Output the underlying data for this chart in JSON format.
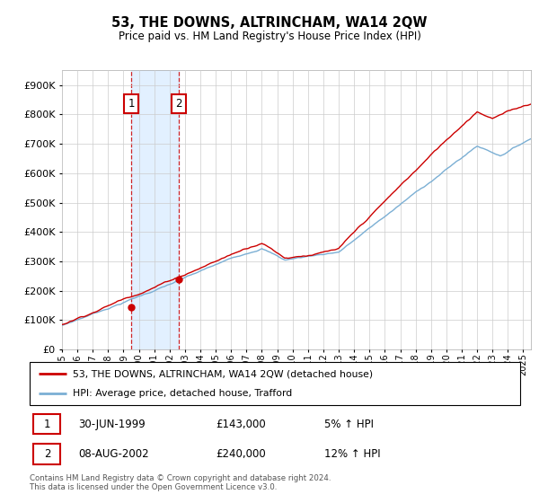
{
  "title": "53, THE DOWNS, ALTRINCHAM, WA14 2QW",
  "subtitle": "Price paid vs. HM Land Registry's House Price Index (HPI)",
  "legend_line1": "53, THE DOWNS, ALTRINCHAM, WA14 2QW (detached house)",
  "legend_line2": "HPI: Average price, detached house, Trafford",
  "transaction1_date": "30-JUN-1999",
  "transaction1_price": "£143,000",
  "transaction1_pct": "5% ↑ HPI",
  "transaction1_year": 1999.5,
  "transaction1_value": 143000,
  "transaction2_date": "08-AUG-2002",
  "transaction2_price": "£240,000",
  "transaction2_pct": "12% ↑ HPI",
  "transaction2_year": 2002.6,
  "transaction2_value": 240000,
  "copyright": "Contains HM Land Registry data © Crown copyright and database right 2024.\nThis data is licensed under the Open Government Licence v3.0.",
  "hpi_color": "#7bafd4",
  "price_color": "#cc0000",
  "transaction_box_color": "#cc0000",
  "shaded_region_color": "#ddeeff",
  "ylim_min": 0,
  "ylim_max": 950000,
  "xmin": 1995,
  "xmax": 2025.5
}
